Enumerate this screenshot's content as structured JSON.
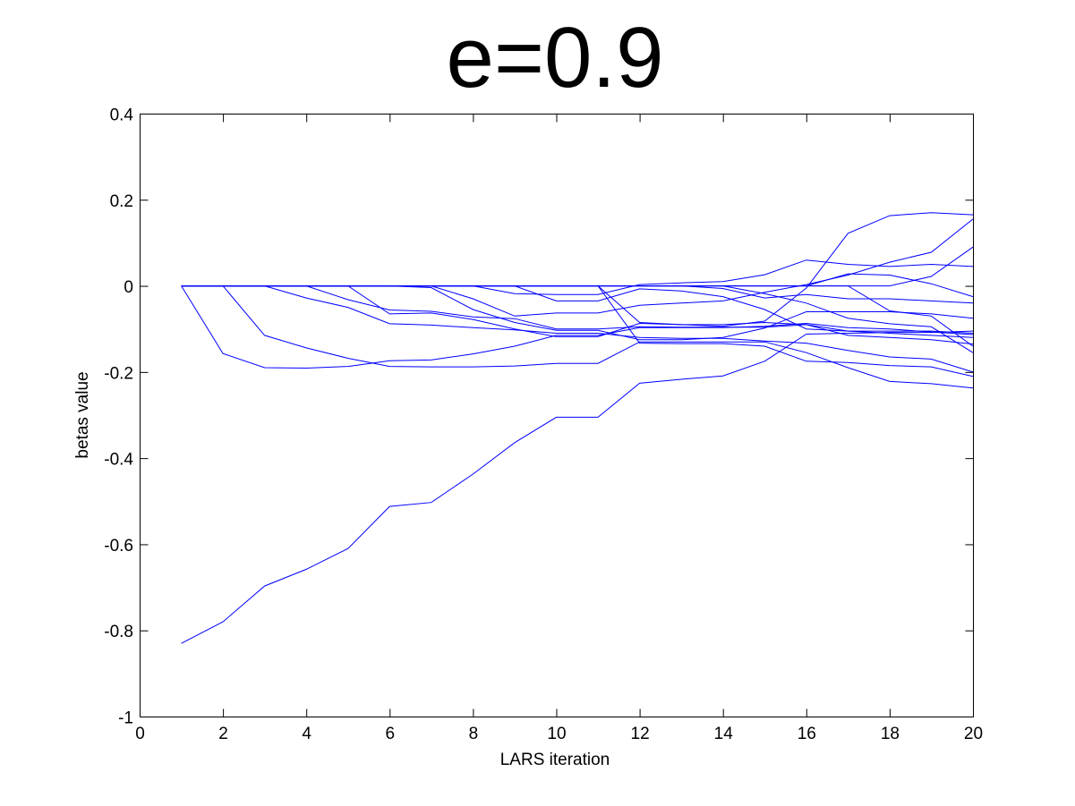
{
  "chart_data": {
    "type": "line",
    "title": "e=0.9",
    "xlabel": "LARS iteration",
    "ylabel": "betas value",
    "xlim": [
      0,
      20
    ],
    "ylim": [
      -1,
      0.4
    ],
    "xticks": [
      0,
      2,
      4,
      6,
      8,
      10,
      12,
      14,
      16,
      18,
      20
    ],
    "xtick_labels": [
      "0",
      "2",
      "4",
      "6",
      "8",
      "10",
      "12",
      "14",
      "16",
      "18",
      "20"
    ],
    "yticks": [
      0.4,
      0.2,
      0,
      -0.2,
      -0.4,
      -0.6,
      -0.8,
      -1
    ],
    "ytick_labels": [
      "0.4",
      "0.2",
      "0",
      "-0.2",
      "-0.4",
      "-0.6",
      "-0.8",
      "-1"
    ],
    "grid": false,
    "line_color": "#0000ff",
    "x": [
      1,
      2,
      3,
      4,
      5,
      6,
      7,
      8,
      9,
      10,
      11,
      12,
      13,
      14,
      15,
      16,
      17,
      18,
      19,
      20
    ],
    "series": [
      {
        "values": [
          -0.83,
          -0.78,
          -0.697,
          -0.658,
          -0.61,
          -0.512,
          -0.503,
          -0.437,
          -0.364,
          -0.305,
          -0.305,
          -0.226,
          -0.217,
          -0.209,
          -0.175,
          -0.112,
          -0.11,
          -0.108,
          -0.108,
          -0.105
        ]
      },
      {
        "values": [
          0,
          -0.157,
          -0.19,
          -0.191,
          -0.187,
          -0.174,
          -0.172,
          -0.158,
          -0.14,
          -0.115,
          -0.115,
          -0.097,
          -0.097,
          -0.097,
          -0.094,
          -0.087,
          -0.097,
          -0.1,
          -0.107,
          -0.113
        ]
      },
      {
        "values": [
          0,
          0,
          -0.115,
          -0.144,
          -0.168,
          -0.187,
          -0.188,
          -0.188,
          -0.186,
          -0.18,
          -0.18,
          -0.13,
          -0.13,
          -0.13,
          -0.13,
          -0.155,
          -0.19,
          -0.222,
          -0.227,
          -0.237
        ]
      },
      {
        "values": [
          0,
          0,
          0,
          -0.028,
          -0.05,
          -0.088,
          -0.091,
          -0.097,
          -0.102,
          -0.11,
          -0.11,
          -0.12,
          -0.122,
          -0.122,
          -0.128,
          -0.133,
          -0.15,
          -0.165,
          -0.17,
          -0.2
        ]
      },
      {
        "values": [
          0,
          0,
          0,
          0,
          -0.032,
          -0.056,
          -0.059,
          -0.072,
          -0.076,
          -0.1,
          -0.1,
          -0.095,
          -0.096,
          -0.096,
          -0.096,
          -0.09,
          -0.115,
          -0.12,
          -0.125,
          -0.135
        ]
      },
      {
        "values": [
          0,
          0,
          0,
          0,
          0,
          -0.065,
          -0.063,
          -0.078,
          -0.1,
          -0.118,
          -0.118,
          -0.087,
          -0.09,
          -0.09,
          -0.085,
          -0.09,
          -0.105,
          -0.11,
          -0.115,
          -0.12
        ]
      },
      {
        "values": [
          0,
          0,
          0,
          0,
          0,
          0,
          -0.004,
          -0.055,
          -0.085,
          -0.103,
          -0.103,
          -0.125,
          -0.125,
          -0.12,
          -0.098,
          -0.06,
          -0.06,
          -0.06,
          -0.065,
          -0.075
        ]
      },
      {
        "values": [
          0,
          0,
          0,
          0,
          0,
          0,
          0,
          -0.03,
          -0.07,
          -0.063,
          -0.063,
          -0.045,
          -0.04,
          -0.035,
          -0.015,
          0.003,
          0.025,
          0.055,
          0.078,
          0.155
        ]
      },
      {
        "values": [
          0,
          0,
          0,
          0,
          0,
          0,
          0,
          0,
          -0.018,
          -0.02,
          -0.02,
          0.003,
          0.007,
          0.01,
          0.026,
          0.06,
          0.05,
          0.045,
          0.05,
          0.045
        ]
      },
      {
        "values": [
          0,
          0,
          0,
          0,
          0,
          0,
          0,
          0,
          0,
          -0.035,
          -0.035,
          -0.007,
          -0.012,
          -0.025,
          -0.055,
          -0.1,
          -0.105,
          -0.105,
          -0.105,
          -0.11
        ]
      },
      {
        "values": [
          0,
          0,
          0,
          0,
          0,
          0,
          0,
          0,
          0,
          0,
          0,
          -0.085,
          -0.09,
          -0.094,
          -0.082,
          -0.005,
          0.122,
          0.163,
          0.17,
          0.165
        ]
      },
      {
        "values": [
          0,
          0,
          0,
          0,
          0,
          0,
          0,
          0,
          0,
          0,
          0,
          -0.133,
          -0.134,
          -0.134,
          -0.14,
          -0.175,
          -0.178,
          -0.185,
          -0.188,
          -0.21
        ]
      },
      {
        "values": [
          0,
          0,
          0,
          0,
          0,
          0,
          0,
          0,
          0,
          0,
          0,
          0,
          0,
          -0.006,
          -0.028,
          -0.02,
          -0.03,
          -0.03,
          -0.035,
          -0.04
        ]
      },
      {
        "values": [
          0,
          0,
          0,
          0,
          0,
          0,
          0,
          0,
          0,
          0,
          0,
          0,
          0,
          0,
          -0.018,
          -0.04,
          -0.075,
          -0.088,
          -0.095,
          -0.155
        ]
      },
      {
        "values": [
          0,
          0,
          0,
          0,
          0,
          0,
          0,
          0,
          0,
          0,
          0,
          0,
          0,
          0,
          0,
          0,
          0.028,
          0.025,
          0.005,
          -0.025
        ]
      },
      {
        "values": [
          0,
          0,
          0,
          0,
          0,
          0,
          0,
          0,
          0,
          0,
          0,
          0,
          0,
          0,
          0,
          0,
          0,
          0,
          0.022,
          0.09
        ]
      },
      {
        "values": [
          0,
          0,
          0,
          0,
          0,
          0,
          0,
          0,
          0,
          0,
          0,
          0,
          0,
          0,
          0,
          0,
          0,
          -0.058,
          -0.07,
          -0.14
        ]
      }
    ]
  }
}
